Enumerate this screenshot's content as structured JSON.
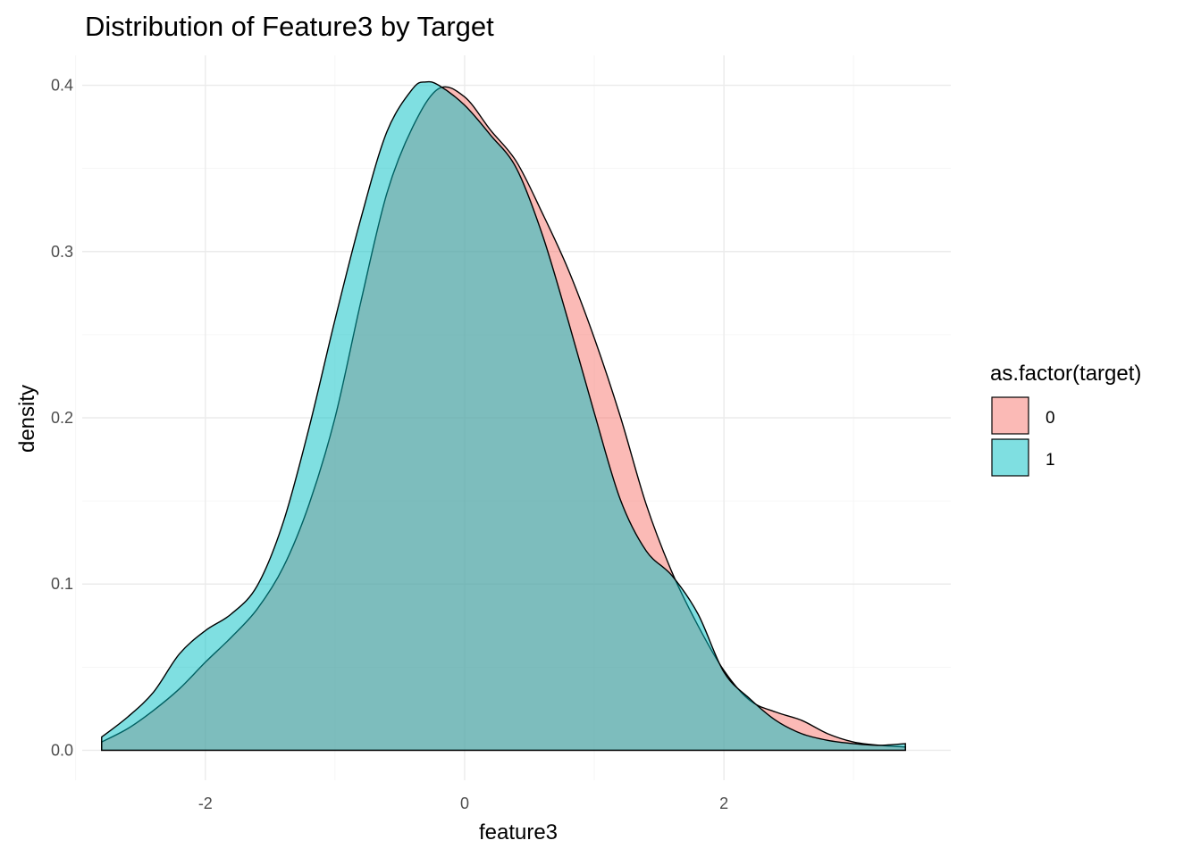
{
  "chart_data": {
    "type": "area",
    "title": "Distribution of Feature3 by Target",
    "xlabel": "feature3",
    "ylabel": "density",
    "xlim": [
      -2.95,
      3.75
    ],
    "ylim": [
      -0.018,
      0.418
    ],
    "x_ticks": [
      -2,
      0,
      2
    ],
    "y_ticks": [
      0.0,
      0.1,
      0.2,
      0.3,
      0.4
    ],
    "x_tick_labels": [
      "-2",
      "0",
      "2"
    ],
    "y_tick_labels": [
      "0.0",
      "0.1",
      "0.2",
      "0.3",
      "0.4"
    ],
    "grid": true,
    "legend": {
      "title": "as.factor(target)",
      "position": "right",
      "entries": [
        {
          "label": "0",
          "color": "#F8766D"
        },
        {
          "label": "1",
          "color": "#00BFC4"
        }
      ]
    },
    "fill_opacity": 0.5,
    "series": [
      {
        "name": "0",
        "color": "#F8766D",
        "points": [
          [
            -2.8,
            0.005
          ],
          [
            -2.6,
            0.013
          ],
          [
            -2.4,
            0.024
          ],
          [
            -2.2,
            0.037
          ],
          [
            -2.0,
            0.053
          ],
          [
            -1.8,
            0.068
          ],
          [
            -1.6,
            0.085
          ],
          [
            -1.4,
            0.11
          ],
          [
            -1.2,
            0.148
          ],
          [
            -1.0,
            0.2
          ],
          [
            -0.8,
            0.27
          ],
          [
            -0.6,
            0.335
          ],
          [
            -0.4,
            0.375
          ],
          [
            -0.2,
            0.398
          ],
          [
            0.0,
            0.393
          ],
          [
            0.2,
            0.373
          ],
          [
            0.4,
            0.354
          ],
          [
            0.6,
            0.323
          ],
          [
            0.8,
            0.289
          ],
          [
            1.0,
            0.248
          ],
          [
            1.2,
            0.201
          ],
          [
            1.4,
            0.148
          ],
          [
            1.6,
            0.107
          ],
          [
            1.8,
            0.075
          ],
          [
            2.0,
            0.048
          ],
          [
            2.2,
            0.03
          ],
          [
            2.4,
            0.023
          ],
          [
            2.6,
            0.018
          ],
          [
            2.8,
            0.01
          ],
          [
            3.0,
            0.005
          ],
          [
            3.2,
            0.003
          ],
          [
            3.4,
            0.002
          ]
        ]
      },
      {
        "name": "1",
        "color": "#00BFC4",
        "points": [
          [
            -2.8,
            0.008
          ],
          [
            -2.6,
            0.02
          ],
          [
            -2.4,
            0.035
          ],
          [
            -2.2,
            0.058
          ],
          [
            -2.0,
            0.072
          ],
          [
            -1.8,
            0.082
          ],
          [
            -1.6,
            0.099
          ],
          [
            -1.4,
            0.137
          ],
          [
            -1.2,
            0.194
          ],
          [
            -1.0,
            0.259
          ],
          [
            -0.8,
            0.32
          ],
          [
            -0.6,
            0.372
          ],
          [
            -0.4,
            0.398
          ],
          [
            -0.3,
            0.402
          ],
          [
            -0.2,
            0.4
          ],
          [
            0.0,
            0.388
          ],
          [
            0.2,
            0.37
          ],
          [
            0.4,
            0.35
          ],
          [
            0.6,
            0.31
          ],
          [
            0.8,
            0.258
          ],
          [
            1.0,
            0.203
          ],
          [
            1.2,
            0.151
          ],
          [
            1.4,
            0.12
          ],
          [
            1.6,
            0.105
          ],
          [
            1.8,
            0.082
          ],
          [
            2.0,
            0.047
          ],
          [
            2.2,
            0.031
          ],
          [
            2.4,
            0.018
          ],
          [
            2.6,
            0.01
          ],
          [
            2.8,
            0.006
          ],
          [
            3.0,
            0.004
          ],
          [
            3.2,
            0.003
          ],
          [
            3.4,
            0.004
          ]
        ]
      }
    ]
  }
}
